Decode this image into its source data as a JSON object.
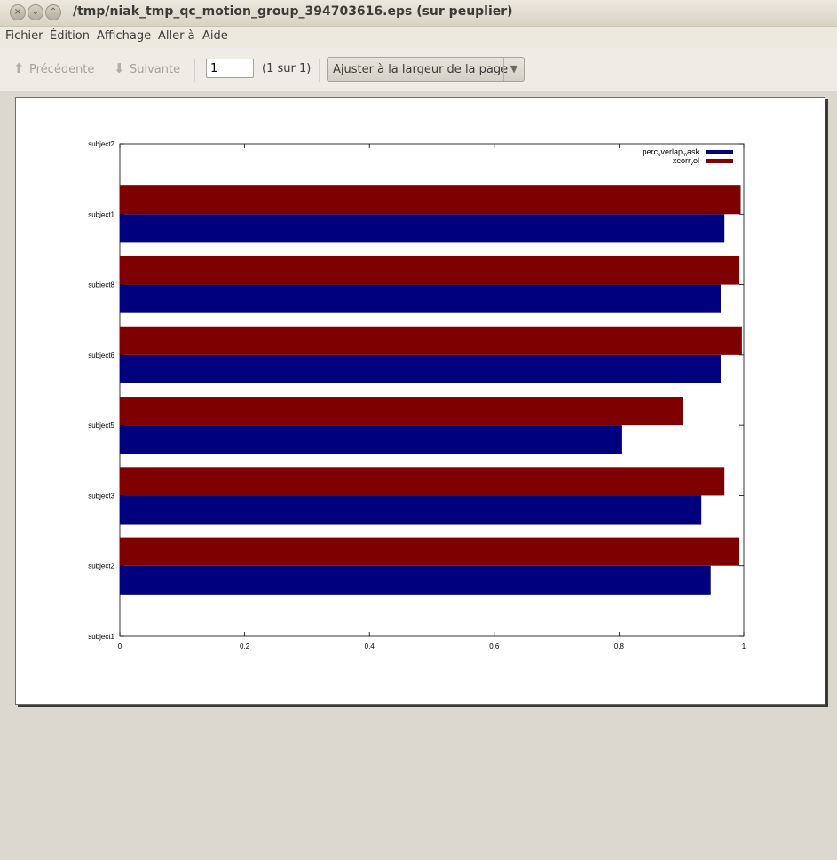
{
  "window": {
    "title": "/tmp/niak_tmp_qc_motion_group_394703616.eps (sur peuplier)",
    "buttons": [
      "×",
      "⌄",
      "⌃"
    ]
  },
  "menu": {
    "items": [
      "Fichier",
      "Édition",
      "Affichage",
      "Aller à",
      "Aide"
    ]
  },
  "toolbar": {
    "prev_label": "Précédente",
    "next_label": "Suivante",
    "page_value": "1",
    "page_count": "(1 sur 1)",
    "zoom_label": "Ajuster à la largeur de la page"
  },
  "chart_data": {
    "type": "bar",
    "orientation": "horizontal",
    "y_tick_labels": [
      "subject1",
      "subject2",
      "subject3",
      "subject5",
      "subject6",
      "subject8",
      "subject1",
      "subject2"
    ],
    "categories": [
      "subject2",
      "subject3",
      "subject5",
      "subject6",
      "subject8",
      "subject1"
    ],
    "series": [
      {
        "name": "perc_overlap_mask",
        "color": "#00007f",
        "values": [
          0.947,
          0.932,
          0.805,
          0.963,
          0.963,
          0.969
        ]
      },
      {
        "name": "xcorr_vol",
        "color": "#7f0000",
        "values": [
          0.993,
          0.969,
          0.903,
          0.997,
          0.993,
          0.995
        ]
      }
    ],
    "legend": {
      "position": "top-right",
      "entries": [
        {
          "base": "perc",
          "sub": "o",
          "mid": "verlap",
          "sub2": "m",
          "tail": "ask"
        },
        {
          "base": "xcorr",
          "sub": "v",
          "mid": "ol",
          "sub2": "",
          "tail": ""
        }
      ]
    },
    "x_ticks": [
      "0",
      "0.2",
      "0.4",
      "0.6",
      "0.8",
      "1"
    ],
    "xlim": [
      0,
      1
    ],
    "grid": false
  }
}
